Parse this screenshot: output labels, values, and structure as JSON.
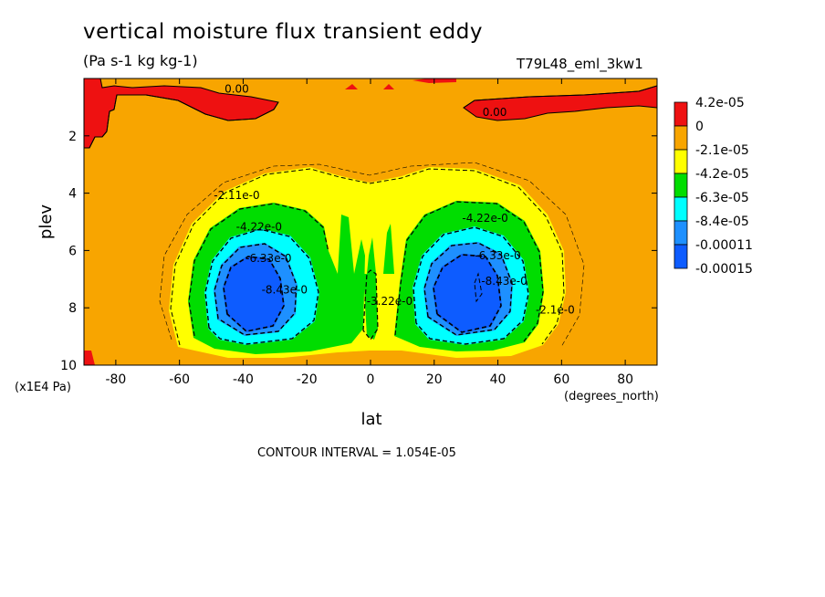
{
  "header": {
    "title": "vertical moisture flux transient eddy",
    "units": "(Pa s-1 kg kg-1)",
    "run_id": "T79L48_eml_3kw1"
  },
  "footer": {
    "contour_interval": "CONTOUR INTERVAL = 1.054E-05"
  },
  "chart_data": {
    "type": "heatmap",
    "title": "vertical moisture flux transient eddy",
    "subtitle": "(Pa s-1 kg kg-1)",
    "xlabel": "lat",
    "xunits": "(degrees_north)",
    "ylabel": "plev",
    "yunits": "(x1E4 Pa)",
    "xlim": [
      -90,
      90
    ],
    "ylim": [
      10,
      0
    ],
    "y_inverted": true,
    "x_ticks": [
      -80,
      -60,
      -40,
      -20,
      0,
      20,
      40,
      60,
      80
    ],
    "x_tick_labels": [
      "-80",
      "-60",
      "-40",
      "-20",
      "0",
      "20",
      "40",
      "60",
      "80"
    ],
    "y_ticks": [
      2,
      4,
      6,
      8,
      10
    ],
    "y_tick_labels": [
      "2",
      "4",
      "6",
      "8",
      "10"
    ],
    "colorbar": {
      "levels": [
        {
          "label": "4.2e-05",
          "color": "#ee1111"
        },
        {
          "label": "0",
          "color": "#f8a500"
        },
        {
          "label": "-2.1e-05",
          "color": "#ffff00"
        },
        {
          "label": "-4.2e-05",
          "color": "#00dd00"
        },
        {
          "label": "-6.3e-05",
          "color": "#00ffff"
        },
        {
          "label": "-8.4e-05",
          "color": "#1e90ff"
        },
        {
          "label": "-0.00011",
          "color": "#0d5cff"
        },
        {
          "label": "-0.00015",
          "color": null
        }
      ]
    },
    "contour_labels": [
      {
        "text": "0.00",
        "lat": -42,
        "plev": 0.5
      },
      {
        "text": "0.00",
        "lat": 39,
        "plev": 1.3
      },
      {
        "text": "-2.11e-0",
        "lat": -42,
        "plev": 4.2
      },
      {
        "text": "-4.22e-0",
        "lat": -35,
        "plev": 5.3
      },
      {
        "text": "-6.33e-0",
        "lat": -32,
        "plev": 6.4
      },
      {
        "text": "-8.43e-0",
        "lat": -27,
        "plev": 7.5
      },
      {
        "text": "-4.22e-0",
        "lat": 36,
        "plev": 5.0
      },
      {
        "text": "-6.33e-0",
        "lat": 40,
        "plev": 6.3
      },
      {
        "text": "-8.43e-0",
        "lat": 42,
        "plev": 7.2
      },
      {
        "text": "-2.1e-0",
        "lat": 58,
        "plev": 8.2
      },
      {
        "text": "-3.22e-0",
        "lat": 6,
        "plev": 7.9
      }
    ],
    "contour_interval": 1.054e-05,
    "colors": {
      "background": "#f8a500",
      "positive": "#ee1111"
    }
  }
}
